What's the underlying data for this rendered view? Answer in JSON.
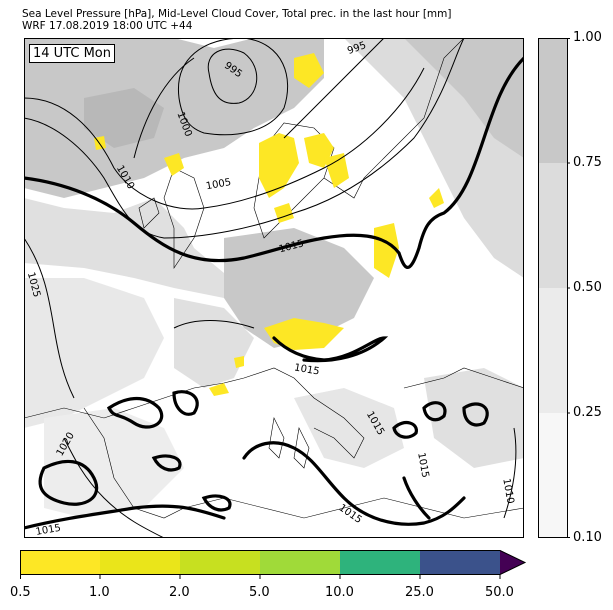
{
  "header": {
    "title_line1": "Sea Level Pressure [hPa], Mid-Level Cloud Cover, Total prec. in the last hour [mm]",
    "title_line2": "WRF 17.08.2019 18:00 UTC +44"
  },
  "map": {
    "time_label": "14 UTC Mon",
    "isobar_labels": [
      "995",
      "995",
      "1000",
      "1005",
      "1010",
      "1015",
      "1015",
      "1015",
      "1015",
      "1015",
      "1010",
      "1020",
      "1025",
      "1015"
    ],
    "colors": {
      "land_bg": "#ffffff",
      "cloud_light": "#f0f0f0",
      "cloud_mid": "#e0e0e0",
      "cloud_dark": "#c8c8c8",
      "precip": "#fde725",
      "coast": "#000000"
    }
  },
  "cloud_colorbar": {
    "ticks": [
      "0.10",
      "0.25",
      "0.50",
      "0.75",
      "1.00"
    ],
    "colors": [
      "#f7f7f7",
      "#ebebeb",
      "#dcdcdc",
      "#c8c8c8"
    ]
  },
  "precip_colorbar": {
    "ticks": [
      "0.5",
      "1.0",
      "2.0",
      "5.0",
      "10.0",
      "25.0",
      "50.0"
    ],
    "colors": [
      "#fde725",
      "#eae51a",
      "#c7e020",
      "#a0da39",
      "#2eb37c",
      "#3b528b",
      "#440154"
    ]
  }
}
